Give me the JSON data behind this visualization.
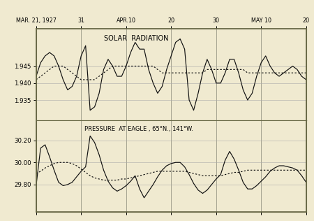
{
  "background_color": "#f0ead0",
  "border_color": "#666644",
  "title": "SOLAR  RADIATION",
  "pressure_label": "PRESSURE  AT EAGLE , 65°N., 141°W.",
  "x_tick_labels": [
    "MAR. 21, 1927",
    "31",
    "APR.10",
    "20",
    "30",
    "MAY 10",
    "20"
  ],
  "x_tick_positions": [
    0,
    10,
    20,
    30,
    40,
    50,
    60
  ],
  "solar_yticks": [
    1.935,
    1.94,
    1.945
  ],
  "pressure_yticks": [
    29.8,
    30.0,
    30.2
  ],
  "solar_ylim": [
    1.929,
    1.956
  ],
  "pressure_ylim": [
    29.55,
    30.38
  ],
  "n_points": 61,
  "solar_solid": [
    1.942,
    1.946,
    1.948,
    1.949,
    1.948,
    1.945,
    1.941,
    1.938,
    1.939,
    1.942,
    1.948,
    1.951,
    1.932,
    1.933,
    1.937,
    1.944,
    1.947,
    1.945,
    1.942,
    1.942,
    1.945,
    1.949,
    1.952,
    1.95,
    1.95,
    1.944,
    1.94,
    1.937,
    1.939,
    1.944,
    1.948,
    1.952,
    1.953,
    1.95,
    1.935,
    1.932,
    1.937,
    1.943,
    1.947,
    1.944,
    1.94,
    1.94,
    1.943,
    1.947,
    1.947,
    1.943,
    1.938,
    1.935,
    1.937,
    1.942,
    1.946,
    1.948,
    1.945,
    1.943,
    1.942,
    1.943,
    1.944,
    1.945,
    1.944,
    1.942,
    1.941
  ],
  "solar_dotted": [
    1.941,
    1.942,
    1.943,
    1.944,
    1.945,
    1.945,
    1.945,
    1.944,
    1.943,
    1.942,
    1.941,
    1.941,
    1.941,
    1.941,
    1.942,
    1.943,
    1.944,
    1.945,
    1.945,
    1.945,
    1.945,
    1.945,
    1.945,
    1.945,
    1.945,
    1.945,
    1.945,
    1.944,
    1.943,
    1.943,
    1.943,
    1.943,
    1.943,
    1.943,
    1.943,
    1.943,
    1.943,
    1.943,
    1.944,
    1.944,
    1.944,
    1.944,
    1.944,
    1.944,
    1.944,
    1.944,
    1.944,
    1.943,
    1.943,
    1.943,
    1.943,
    1.943,
    1.943,
    1.943,
    1.943,
    1.943,
    1.943,
    1.943,
    1.943,
    1.943,
    1.943
  ],
  "pressure_solid": [
    29.79,
    30.13,
    30.16,
    30.05,
    29.93,
    29.82,
    29.79,
    29.8,
    29.82,
    29.87,
    29.92,
    29.96,
    30.24,
    30.18,
    30.07,
    29.93,
    29.83,
    29.77,
    29.74,
    29.76,
    29.79,
    29.83,
    29.88,
    29.76,
    29.68,
    29.74,
    29.8,
    29.87,
    29.93,
    29.97,
    29.99,
    30.0,
    30.0,
    29.96,
    29.89,
    29.81,
    29.75,
    29.72,
    29.75,
    29.8,
    29.85,
    29.89,
    30.02,
    30.1,
    30.03,
    29.93,
    29.82,
    29.76,
    29.76,
    29.79,
    29.83,
    29.87,
    29.92,
    29.95,
    29.97,
    29.97,
    29.96,
    29.95,
    29.93,
    29.88,
    29.82
  ],
  "pressure_dotted": [
    29.9,
    29.92,
    29.95,
    29.97,
    29.99,
    30.0,
    30.0,
    30.0,
    29.99,
    29.97,
    29.94,
    29.91,
    29.88,
    29.86,
    29.85,
    29.84,
    29.84,
    29.84,
    29.84,
    29.85,
    29.85,
    29.86,
    29.87,
    29.88,
    29.89,
    29.9,
    29.91,
    29.92,
    29.92,
    29.92,
    29.92,
    29.92,
    29.92,
    29.92,
    29.91,
    29.9,
    29.89,
    29.88,
    29.88,
    29.88,
    29.88,
    29.88,
    29.89,
    29.9,
    29.91,
    29.91,
    29.92,
    29.93,
    29.93,
    29.93,
    29.93,
    29.93,
    29.93,
    29.93,
    29.93,
    29.93,
    29.93,
    29.93,
    29.93,
    29.93,
    29.93
  ],
  "line_color": "#111111",
  "grid_color": "#aaaaaa",
  "vline_color": "#888877"
}
